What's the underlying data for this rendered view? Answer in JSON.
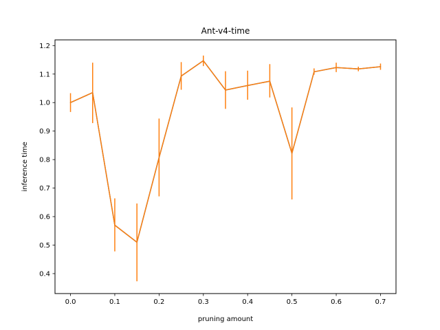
{
  "chart_data": {
    "type": "line",
    "title": "Ant-v4-time",
    "xlabel": "pruning amount",
    "ylabel": "inference time",
    "xlim": [
      -0.035,
      0.735
    ],
    "ylim": [
      0.33,
      1.22
    ],
    "xticks": [
      0.0,
      0.1,
      0.2,
      0.3,
      0.4,
      0.5,
      0.6,
      0.7
    ],
    "xtick_labels": [
      "0.0",
      "0.1",
      "0.2",
      "0.3",
      "0.4",
      "0.5",
      "0.6",
      "0.7"
    ],
    "yticks": [
      0.4,
      0.5,
      0.6,
      0.7,
      0.8,
      0.9,
      1.0,
      1.1,
      1.2
    ],
    "ytick_labels": [
      "0.4",
      "0.5",
      "0.6",
      "0.7",
      "0.8",
      "0.9",
      "1.0",
      "1.1",
      "1.2"
    ],
    "grid": false,
    "legend": "none",
    "series": [
      {
        "color": "#ff7f0e",
        "line_color": "#1f77b4",
        "x": [
          0.0,
          0.05,
          0.1,
          0.15,
          0.2,
          0.25,
          0.3,
          0.35,
          0.4,
          0.45,
          0.5,
          0.55,
          0.6,
          0.65,
          0.7
        ],
        "y": [
          1.0,
          1.035,
          0.57,
          0.51,
          0.807,
          1.093,
          1.147,
          1.044,
          1.06,
          1.075,
          0.822,
          1.108,
          1.123,
          1.118,
          1.126
        ],
        "err_low": [
          0.967,
          0.928,
          0.478,
          0.373,
          0.671,
          1.045,
          1.128,
          0.978,
          1.01,
          1.018,
          0.66,
          1.098,
          1.107,
          1.11,
          1.115
        ],
        "err_high": [
          1.033,
          1.14,
          0.664,
          0.646,
          0.944,
          1.142,
          1.165,
          1.11,
          1.112,
          1.135,
          0.983,
          1.12,
          1.14,
          1.126,
          1.137
        ]
      }
    ]
  }
}
